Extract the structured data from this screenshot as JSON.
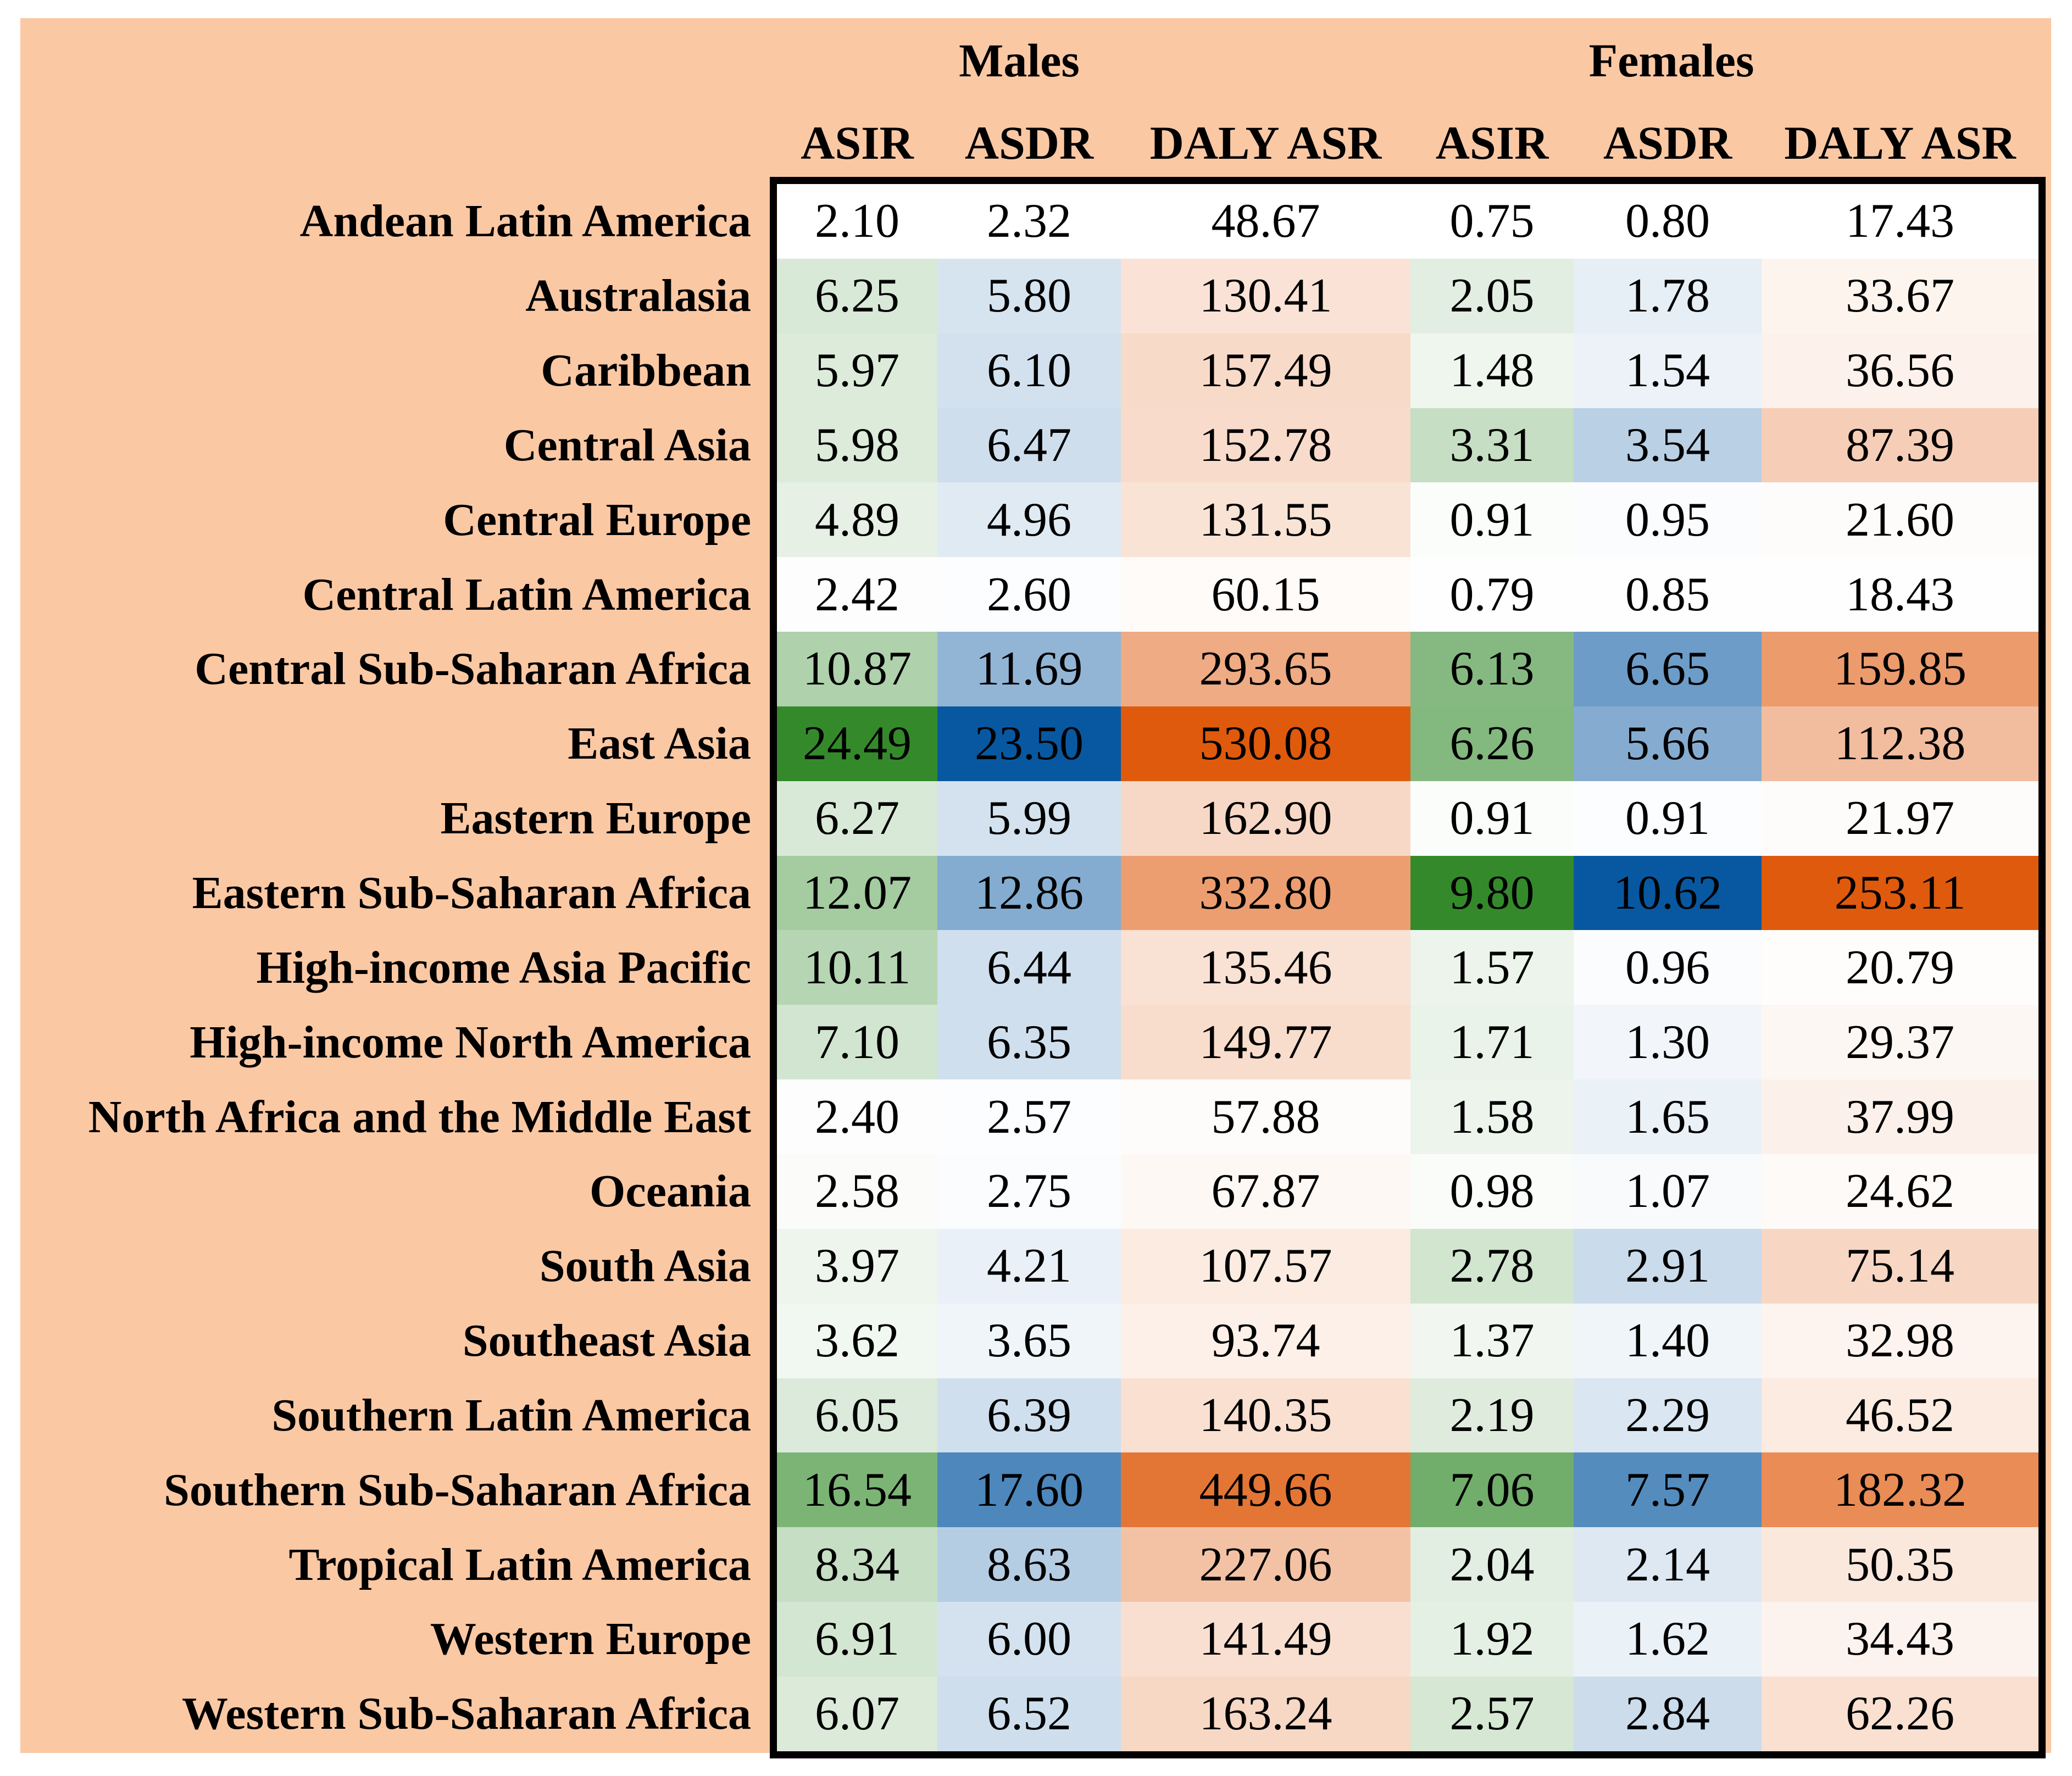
{
  "colors": {
    "page_background": "#FFFFFF",
    "panel_background": "#FBC8A4",
    "table_border": "#000000",
    "text": "#000000",
    "scale_min_color": "#FFFFFF",
    "scale_max_green": "#348A2B",
    "scale_max_blue": "#0858A1",
    "scale_max_orange": "#DF5A0D"
  },
  "header": {
    "groups": [
      "Males",
      "Females"
    ],
    "sub": [
      "ASIR",
      "ASDR",
      "DALY ASR",
      "ASIR",
      "ASDR",
      "DALY ASR"
    ]
  },
  "chart_data": {
    "type": "heatmap",
    "column_groups": [
      "Males",
      "Females"
    ],
    "columns": [
      "Males ASIR",
      "Males ASDR",
      "Males DALY ASR",
      "Females ASIR",
      "Females ASDR",
      "Females DALY ASR"
    ],
    "color_scale": {
      "normalization": "per-column linear min-max",
      "min_color": "#FFFFFF",
      "max_colors": [
        "#348A2B",
        "#0858A1",
        "#DF5A0D",
        "#348A2B",
        "#0858A1",
        "#DF5A0D"
      ]
    },
    "rows": [
      {
        "region": "Andean Latin America",
        "values": [
          "2.10",
          "2.32",
          "48.67",
          "0.75",
          "0.80",
          "17.43"
        ]
      },
      {
        "region": "Australasia",
        "values": [
          "6.25",
          "5.80",
          "130.41",
          "2.05",
          "1.78",
          "33.67"
        ]
      },
      {
        "region": "Caribbean",
        "values": [
          "5.97",
          "6.10",
          "157.49",
          "1.48",
          "1.54",
          "36.56"
        ]
      },
      {
        "region": "Central Asia",
        "values": [
          "5.98",
          "6.47",
          "152.78",
          "3.31",
          "3.54",
          "87.39"
        ]
      },
      {
        "region": "Central Europe",
        "values": [
          "4.89",
          "4.96",
          "131.55",
          "0.91",
          "0.95",
          "21.60"
        ]
      },
      {
        "region": "Central Latin America",
        "values": [
          "2.42",
          "2.60",
          "60.15",
          "0.79",
          "0.85",
          "18.43"
        ]
      },
      {
        "region": "Central Sub-Saharan Africa",
        "values": [
          "10.87",
          "11.69",
          "293.65",
          "6.13",
          "6.65",
          "159.85"
        ]
      },
      {
        "region": "East Asia",
        "values": [
          "24.49",
          "23.50",
          "530.08",
          "6.26",
          "5.66",
          "112.38"
        ]
      },
      {
        "region": "Eastern Europe",
        "values": [
          "6.27",
          "5.99",
          "162.90",
          "0.91",
          "0.91",
          "21.97"
        ]
      },
      {
        "region": "Eastern Sub-Saharan Africa",
        "values": [
          "12.07",
          "12.86",
          "332.80",
          "9.80",
          "10.62",
          "253.11"
        ]
      },
      {
        "region": "High-income Asia Pacific",
        "values": [
          "10.11",
          "6.44",
          "135.46",
          "1.57",
          "0.96",
          "20.79"
        ]
      },
      {
        "region": "High-income North America",
        "values": [
          "7.10",
          "6.35",
          "149.77",
          "1.71",
          "1.30",
          "29.37"
        ]
      },
      {
        "region": "North Africa and the Middle East",
        "values": [
          "2.40",
          "2.57",
          "57.88",
          "1.58",
          "1.65",
          "37.99"
        ]
      },
      {
        "region": "Oceania",
        "values": [
          "2.58",
          "2.75",
          "67.87",
          "0.98",
          "1.07",
          "24.62"
        ]
      },
      {
        "region": "South Asia",
        "values": [
          "3.97",
          "4.21",
          "107.57",
          "2.78",
          "2.91",
          "75.14"
        ]
      },
      {
        "region": "Southeast Asia",
        "values": [
          "3.62",
          "3.65",
          "93.74",
          "1.37",
          "1.40",
          "32.98"
        ]
      },
      {
        "region": "Southern Latin America",
        "values": [
          "6.05",
          "6.39",
          "140.35",
          "2.19",
          "2.29",
          "46.52"
        ]
      },
      {
        "region": "Southern Sub-Saharan Africa",
        "values": [
          "16.54",
          "17.60",
          "449.66",
          "7.06",
          "7.57",
          "182.32"
        ]
      },
      {
        "region": "Tropical Latin America",
        "values": [
          "8.34",
          "8.63",
          "227.06",
          "2.04",
          "2.14",
          "50.35"
        ]
      },
      {
        "region": "Western Europe",
        "values": [
          "6.91",
          "6.00",
          "141.49",
          "1.92",
          "1.62",
          "34.43"
        ]
      },
      {
        "region": "Western Sub-Saharan Africa",
        "values": [
          "6.07",
          "6.52",
          "163.24",
          "2.57",
          "2.84",
          "62.26"
        ]
      }
    ]
  }
}
